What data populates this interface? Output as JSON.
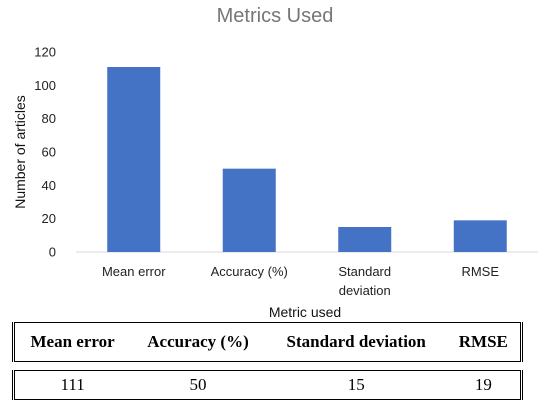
{
  "chart_data": {
    "type": "bar",
    "title": "Metrics Used",
    "xlabel": "Metric used",
    "ylabel": "Number of articles",
    "categories": [
      "Mean error",
      "Accuracy (%)",
      "Standard deviation",
      "RMSE"
    ],
    "category_lines": [
      [
        "Mean error"
      ],
      [
        "Accuracy (%)"
      ],
      [
        "Standard",
        "deviation"
      ],
      [
        "RMSE"
      ]
    ],
    "values": [
      111,
      50,
      15,
      19
    ],
    "ylim": [
      0,
      120
    ],
    "yticks": [
      0,
      20,
      40,
      60,
      80,
      100,
      120
    ],
    "grid": false,
    "bar_color": "#4472c4"
  },
  "table": {
    "headers": [
      "Mean error",
      "Accuracy (%)",
      "Standard deviation",
      "RMSE"
    ],
    "values": [
      "111",
      "50",
      "15",
      "19"
    ]
  }
}
